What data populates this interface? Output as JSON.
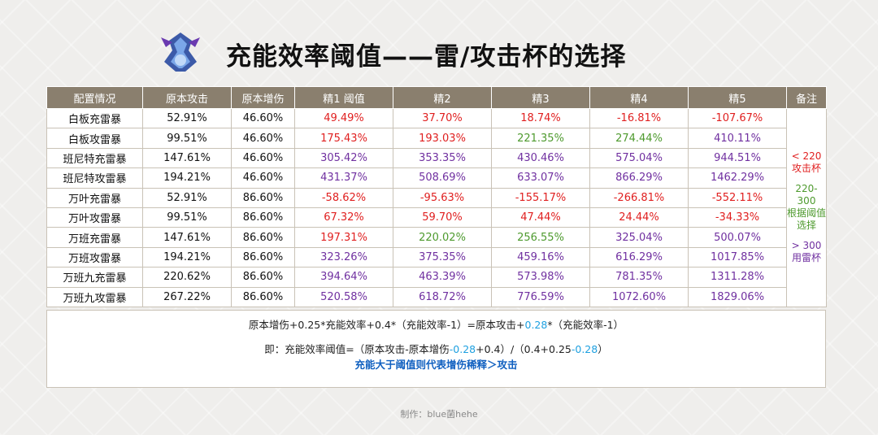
{
  "header": {
    "title": "充能效率阈值——雷/攻击杯的选择"
  },
  "table": {
    "columns": [
      "配置情况",
      "原本攻击",
      "原本增伤",
      "精1 阈值",
      "精2",
      "精3",
      "精4",
      "精5",
      "备注"
    ],
    "rows": [
      {
        "config": "白板充雷暴",
        "atk": "52.91%",
        "dmg": "46.60%",
        "thresholds": [
          {
            "text": "49.49%",
            "color": "#e02020"
          },
          {
            "text": "37.70%",
            "color": "#e02020"
          },
          {
            "text": "18.74%",
            "color": "#e02020"
          },
          {
            "text": "-16.81%",
            "color": "#e02020"
          },
          {
            "text": "-107.67%",
            "color": "#e02020"
          }
        ]
      },
      {
        "config": "白板攻雷暴",
        "atk": "99.51%",
        "dmg": "46.60%",
        "thresholds": [
          {
            "text": "175.43%",
            "color": "#e02020"
          },
          {
            "text": "193.03%",
            "color": "#e02020"
          },
          {
            "text": "221.35%",
            "color": "#4e9a2e"
          },
          {
            "text": "274.44%",
            "color": "#4e9a2e"
          },
          {
            "text": "410.11%",
            "color": "#7030a0"
          }
        ]
      },
      {
        "config": "班尼特充雷暴",
        "atk": "147.61%",
        "dmg": "46.60%",
        "thresholds": [
          {
            "text": "305.42%",
            "color": "#7030a0"
          },
          {
            "text": "353.35%",
            "color": "#7030a0"
          },
          {
            "text": "430.46%",
            "color": "#7030a0"
          },
          {
            "text": "575.04%",
            "color": "#7030a0"
          },
          {
            "text": "944.51%",
            "color": "#7030a0"
          }
        ]
      },
      {
        "config": "班尼特攻雷暴",
        "atk": "194.21%",
        "dmg": "46.60%",
        "thresholds": [
          {
            "text": "431.37%",
            "color": "#7030a0"
          },
          {
            "text": "508.69%",
            "color": "#7030a0"
          },
          {
            "text": "633.07%",
            "color": "#7030a0"
          },
          {
            "text": "866.29%",
            "color": "#7030a0"
          },
          {
            "text": "1462.29%",
            "color": "#7030a0"
          }
        ]
      },
      {
        "config": "万叶充雷暴",
        "atk": "52.91%",
        "dmg": "86.60%",
        "thresholds": [
          {
            "text": "-58.62%",
            "color": "#e02020"
          },
          {
            "text": "-95.63%",
            "color": "#e02020"
          },
          {
            "text": "-155.17%",
            "color": "#e02020"
          },
          {
            "text": "-266.81%",
            "color": "#e02020"
          },
          {
            "text": "-552.11%",
            "color": "#e02020"
          }
        ]
      },
      {
        "config": "万叶攻雷暴",
        "atk": "99.51%",
        "dmg": "86.60%",
        "thresholds": [
          {
            "text": "67.32%",
            "color": "#e02020"
          },
          {
            "text": "59.70%",
            "color": "#e02020"
          },
          {
            "text": "47.44%",
            "color": "#e02020"
          },
          {
            "text": "24.44%",
            "color": "#e02020"
          },
          {
            "text": "-34.33%",
            "color": "#e02020"
          }
        ]
      },
      {
        "config": "万班充雷暴",
        "atk": "147.61%",
        "dmg": "86.60%",
        "thresholds": [
          {
            "text": "197.31%",
            "color": "#e02020"
          },
          {
            "text": "220.02%",
            "color": "#4e9a2e"
          },
          {
            "text": "256.55%",
            "color": "#4e9a2e"
          },
          {
            "text": "325.04%",
            "color": "#7030a0"
          },
          {
            "text": "500.07%",
            "color": "#7030a0"
          }
        ]
      },
      {
        "config": "万班攻雷暴",
        "atk": "194.21%",
        "dmg": "86.60%",
        "thresholds": [
          {
            "text": "323.26%",
            "color": "#7030a0"
          },
          {
            "text": "375.35%",
            "color": "#7030a0"
          },
          {
            "text": "459.16%",
            "color": "#7030a0"
          },
          {
            "text": "616.29%",
            "color": "#7030a0"
          },
          {
            "text": "1017.85%",
            "color": "#7030a0"
          }
        ]
      },
      {
        "config": "万班九充雷暴",
        "atk": "220.62%",
        "dmg": "86.60%",
        "thresholds": [
          {
            "text": "394.64%",
            "color": "#7030a0"
          },
          {
            "text": "463.39%",
            "color": "#7030a0"
          },
          {
            "text": "573.98%",
            "color": "#7030a0"
          },
          {
            "text": "781.35%",
            "color": "#7030a0"
          },
          {
            "text": "1311.28%",
            "color": "#7030a0"
          }
        ]
      },
      {
        "config": "万班九攻雷暴",
        "atk": "267.22%",
        "dmg": "86.60%",
        "thresholds": [
          {
            "text": "520.58%",
            "color": "#7030a0"
          },
          {
            "text": "618.72%",
            "color": "#7030a0"
          },
          {
            "text": "776.59%",
            "color": "#7030a0"
          },
          {
            "text": "1072.60%",
            "color": "#7030a0"
          },
          {
            "text": "1829.06%",
            "color": "#7030a0"
          }
        ]
      }
    ],
    "notes": [
      {
        "lines": [
          "< 220",
          "攻击杯"
        ],
        "color": "#e02020"
      },
      {
        "lines": [
          "220-300",
          "根据阈值",
          "选择"
        ],
        "color": "#4e9a2e"
      },
      {
        "lines": [
          "> 300",
          "用雷杯"
        ],
        "color": "#7030a0"
      }
    ]
  },
  "formula": {
    "lines": [
      [
        {
          "text": "原本增伤+0.25*充能效率+0.4*（充能效率-1）=原本攻击+",
          "color": "#222222"
        },
        {
          "text": "0.28",
          "color": "#1ea0e0"
        },
        {
          "text": "*（充能效率-1）",
          "color": "#222222"
        }
      ],
      [
        {
          "text": "即：充能效率阈值=（原本攻击-原本增伤",
          "color": "#222222"
        },
        {
          "text": "-0.28",
          "color": "#1ea0e0"
        },
        {
          "text": "+0.4）/（0.4+0.25",
          "color": "#222222"
        },
        {
          "text": "-0.28",
          "color": "#1ea0e0"
        },
        {
          "text": "）",
          "color": "#222222"
        }
      ],
      [
        {
          "text": "充能大于阈值则代表增伤稀释＞攻击",
          "color": "#1060c0"
        }
      ]
    ]
  },
  "footer": {
    "credit": "制作：blue菌hehe"
  }
}
